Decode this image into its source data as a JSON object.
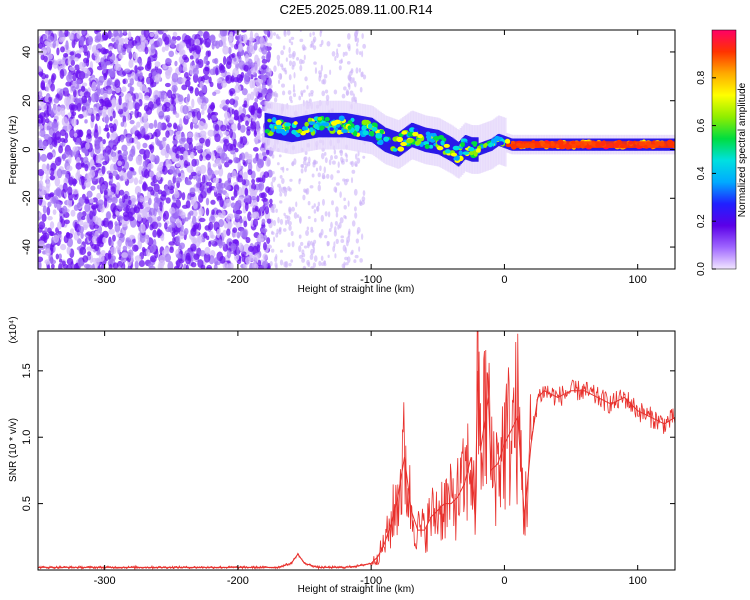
{
  "title": "C2E5.2025.089.11.00.R14",
  "chart_data": [
    {
      "type": "heatmap",
      "xlabel": "Height of straight line (km)",
      "ylabel": "Frequency (Hz)",
      "xlim": [
        -350,
        128
      ],
      "ylim": [
        -49,
        49
      ],
      "xticks": [
        -300,
        -200,
        -100,
        0,
        100
      ],
      "yticks": [
        -40,
        -20,
        0,
        20,
        40
      ],
      "colorbar": {
        "label": "Normalized spectral amplitude",
        "range": [
          0.0,
          1.0
        ],
        "ticks": [
          0.0,
          0.2,
          0.4,
          0.6,
          0.8
        ],
        "tick_labels": [
          "0.0",
          "0.2",
          "0.4",
          "0.6",
          "0.8"
        ],
        "colormap": [
          "#f2e6ff",
          "#9f66ff",
          "#5b00e8",
          "#2020ff",
          "#00aaff",
          "#00e0e0",
          "#00dd40",
          "#90ee00",
          "#ffff00",
          "#ffaa00",
          "#ff3300",
          "#ff0066"
        ]
      },
      "ridge": {
        "x": [
          -180,
          -160,
          -140,
          -120,
          -100,
          -90,
          -80,
          -70,
          -60,
          -50,
          -40,
          -35,
          -30,
          -25,
          -20,
          -10,
          -5,
          0,
          5,
          20,
          50,
          80,
          100,
          128
        ],
        "y": [
          10,
          8,
          10,
          10,
          8,
          4,
          2,
          6,
          4,
          3,
          0,
          -2,
          1,
          0,
          0,
          2,
          4,
          3,
          2,
          2,
          2,
          2,
          2,
          2
        ]
      },
      "grid": false
    },
    {
      "type": "line",
      "xlabel": "Height of straight line (km)",
      "ylabel": "SNR (10 * v/v)",
      "y_scale_label": "(x10⁴)",
      "xlim": [
        -350,
        128
      ],
      "ylim": [
        0,
        1.8
      ],
      "xticks": [
        -300,
        -200,
        -100,
        0,
        100
      ],
      "yticks": [
        0.5,
        1.0,
        1.5
      ],
      "ytick_labels": [
        "0.5",
        "1.0",
        "1.5"
      ],
      "series": [
        {
          "color": "#e8302c",
          "x": [
            -350,
            -300,
            -250,
            -200,
            -170,
            -160,
            -155,
            -150,
            -140,
            -120,
            -110,
            -100,
            -95,
            -90,
            -85,
            -80,
            -75,
            -70,
            -65,
            -60,
            -55,
            -50,
            -45,
            -40,
            -35,
            -30,
            -25,
            -22,
            -20,
            -18,
            -15,
            -12,
            -10,
            -5,
            0,
            5,
            10,
            15,
            20,
            25,
            30,
            40,
            50,
            60,
            70,
            80,
            90,
            100,
            110,
            120,
            128
          ],
          "y": [
            0.02,
            0.02,
            0.02,
            0.02,
            0.02,
            0.05,
            0.12,
            0.05,
            0.02,
            0.02,
            0.03,
            0.05,
            0.1,
            0.2,
            0.35,
            0.55,
            0.85,
            0.45,
            0.3,
            0.3,
            0.4,
            0.45,
            0.5,
            0.5,
            0.55,
            0.65,
            0.85,
            0.4,
            1.5,
            0.9,
            1.1,
            1.3,
            0.75,
            0.8,
            0.95,
            1.05,
            1.15,
            0.4,
            0.95,
            1.3,
            1.35,
            1.3,
            1.35,
            1.35,
            1.3,
            1.25,
            1.3,
            1.2,
            1.15,
            1.1,
            1.15
          ]
        }
      ],
      "grid": false
    }
  ]
}
